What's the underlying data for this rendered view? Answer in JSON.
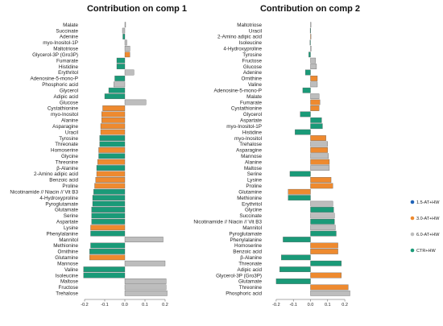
{
  "colors": {
    "1.5-AT+HW": "#1f63b8",
    "3.0-AT+HW": "#ee8a2f",
    "6.0-AT+HW": "#bdbdbd",
    "CTR+HW": "#1a9a78",
    "bar_stroke": "#5a5a5a"
  },
  "legend": [
    {
      "label": "1.5-AT+HW",
      "key": "1.5-AT+HW"
    },
    {
      "label": "3.0-AT+HW",
      "key": "3.0-AT+HW"
    },
    {
      "label": "6.0-AT+HW",
      "key": "6.0-AT+HW"
    },
    {
      "label": "CTR+HW",
      "key": "CTR+HW"
    }
  ],
  "chart_data": [
    {
      "type": "bar",
      "orientation": "horizontal",
      "title": "Contribution on comp 1",
      "xlim": [
        -0.22,
        0.22
      ],
      "xticks": [
        -0.2,
        -0.1,
        0.0,
        0.1,
        0.2
      ],
      "xtick_labels": [
        "-0.2",
        "-0.1",
        "0.0",
        "0.1",
        "0.2"
      ],
      "bars": [
        {
          "label": "Malate",
          "value": 0.004,
          "group": "6.0-AT+HW"
        },
        {
          "label": "Succinate",
          "value": -0.012,
          "group": "6.0-AT+HW"
        },
        {
          "label": "Adenine",
          "value": -0.01,
          "group": "CTR+HW"
        },
        {
          "label": "myo-Inositol-1P",
          "value": 0.01,
          "group": "6.0-AT+HW"
        },
        {
          "label": "Maltotriose",
          "value": 0.025,
          "group": "6.0-AT+HW"
        },
        {
          "label": "Glycerol-3P (Gro3P)",
          "value": 0.025,
          "group": "3.0-AT+HW"
        },
        {
          "label": "Fumarate",
          "value": -0.04,
          "group": "CTR+HW"
        },
        {
          "label": "Histidine",
          "value": -0.04,
          "group": "CTR+HW"
        },
        {
          "label": "Erythritol",
          "value": 0.045,
          "group": "6.0-AT+HW"
        },
        {
          "label": "Adenosine-5-mono-P",
          "value": -0.05,
          "group": "CTR+HW"
        },
        {
          "label": "Phosphoric acid",
          "value": -0.055,
          "group": "6.0-AT+HW"
        },
        {
          "label": "Glycerol",
          "value": -0.08,
          "group": "CTR+HW"
        },
        {
          "label": "Adipic acid",
          "value": -0.1,
          "group": "CTR+HW"
        },
        {
          "label": "Glucose",
          "value": 0.105,
          "group": "6.0-AT+HW"
        },
        {
          "label": "Cystathionine",
          "value": -0.11,
          "group": "3.0-AT+HW"
        },
        {
          "label": "myo-Inositol",
          "value": -0.115,
          "group": "3.0-AT+HW"
        },
        {
          "label": "Alanine",
          "value": -0.115,
          "group": "3.0-AT+HW"
        },
        {
          "label": "Asparagine",
          "value": -0.12,
          "group": "3.0-AT+HW"
        },
        {
          "label": "Uracil",
          "value": -0.12,
          "group": "3.0-AT+HW"
        },
        {
          "label": "Tyrosine",
          "value": -0.125,
          "group": "CTR+HW"
        },
        {
          "label": "Threonate",
          "value": -0.125,
          "group": "CTR+HW"
        },
        {
          "label": "Homoserine",
          "value": -0.13,
          "group": "3.0-AT+HW"
        },
        {
          "label": "Glycine",
          "value": -0.13,
          "group": "CTR+HW"
        },
        {
          "label": "Threonine",
          "value": -0.135,
          "group": "3.0-AT+HW"
        },
        {
          "label": "β-Alanine",
          "value": -0.14,
          "group": "CTR+HW"
        },
        {
          "label": "2-Amino adipic acid",
          "value": -0.14,
          "group": "3.0-AT+HW"
        },
        {
          "label": "Benzoic acid",
          "value": -0.145,
          "group": "3.0-AT+HW"
        },
        {
          "label": "Proline",
          "value": -0.15,
          "group": "3.0-AT+HW"
        },
        {
          "label": "Nicotinamide // Niacin // Vit B3",
          "value": -0.155,
          "group": "CTR+HW"
        },
        {
          "label": "4-Hydroxyproline",
          "value": -0.16,
          "group": "CTR+HW"
        },
        {
          "label": "Pyroglutamate",
          "value": -0.16,
          "group": "CTR+HW"
        },
        {
          "label": "Glutamate",
          "value": -0.165,
          "group": "CTR+HW"
        },
        {
          "label": "Serine",
          "value": -0.165,
          "group": "CTR+HW"
        },
        {
          "label": "Aspartate",
          "value": -0.165,
          "group": "CTR+HW"
        },
        {
          "label": "Lysine",
          "value": -0.17,
          "group": "3.0-AT+HW"
        },
        {
          "label": "Phenylalanine",
          "value": -0.17,
          "group": "CTR+HW"
        },
        {
          "label": "Mannitol",
          "value": 0.19,
          "group": "6.0-AT+HW"
        },
        {
          "label": "Methionine",
          "value": -0.17,
          "group": "CTR+HW"
        },
        {
          "label": "Ornithine",
          "value": -0.175,
          "group": "CTR+HW"
        },
        {
          "label": "Glutamine",
          "value": -0.175,
          "group": "3.0-AT+HW"
        },
        {
          "label": "Mannose",
          "value": 0.2,
          "group": "6.0-AT+HW"
        },
        {
          "label": "Valine",
          "value": -0.205,
          "group": "CTR+HW"
        },
        {
          "label": "Isoleucine",
          "value": -0.205,
          "group": "CTR+HW"
        },
        {
          "label": "Maltose",
          "value": 0.205,
          "group": "6.0-AT+HW"
        },
        {
          "label": "Fructose",
          "value": 0.205,
          "group": "6.0-AT+HW"
        },
        {
          "label": "Trehalose",
          "value": 0.21,
          "group": "6.0-AT+HW"
        }
      ]
    },
    {
      "type": "bar",
      "orientation": "horizontal",
      "title": "Contribution on comp 2",
      "xlim": [
        -0.27,
        0.27
      ],
      "xticks": [
        -0.2,
        -0.1,
        0.0,
        0.1,
        0.2
      ],
      "xtick_labels": [
        "-0.2",
        "-0.1",
        "0.0",
        "0.1",
        "0.2"
      ],
      "bars": [
        {
          "label": "Maltotriose",
          "value": 0.002,
          "group": "6.0-AT+HW"
        },
        {
          "label": "Uracil",
          "value": -0.002,
          "group": "CTR+HW"
        },
        {
          "label": "2-Amino adipic acid",
          "value": 0.002,
          "group": "3.0-AT+HW"
        },
        {
          "label": "Isoleucine",
          "value": -0.003,
          "group": "CTR+HW"
        },
        {
          "label": "4-Hydroxyproline",
          "value": 0.004,
          "group": "6.0-AT+HW"
        },
        {
          "label": "Tyrosine",
          "value": -0.01,
          "group": "CTR+HW"
        },
        {
          "label": "Fructose",
          "value": 0.03,
          "group": "6.0-AT+HW"
        },
        {
          "label": "Glucose",
          "value": 0.035,
          "group": "6.0-AT+HW"
        },
        {
          "label": "Adenine",
          "value": -0.03,
          "group": "CTR+HW"
        },
        {
          "label": "Ornithine",
          "value": 0.04,
          "group": "3.0-AT+HW"
        },
        {
          "label": "Valine",
          "value": 0.04,
          "group": "6.0-AT+HW"
        },
        {
          "label": "Adenosine-5-mono-P",
          "value": -0.045,
          "group": "CTR+HW"
        },
        {
          "label": "Malate",
          "value": 0.05,
          "group": "6.0-AT+HW"
        },
        {
          "label": "Fumarate",
          "value": 0.055,
          "group": "3.0-AT+HW"
        },
        {
          "label": "Cystathionine",
          "value": 0.05,
          "group": "3.0-AT+HW"
        },
        {
          "label": "Glycerol",
          "value": -0.06,
          "group": "CTR+HW"
        },
        {
          "label": "Aspartate",
          "value": 0.065,
          "group": "CTR+HW"
        },
        {
          "label": "myo-Inositol-1P",
          "value": 0.07,
          "group": "CTR+HW"
        },
        {
          "label": "Histidine",
          "value": -0.09,
          "group": "CTR+HW"
        },
        {
          "label": "myo-Inositol",
          "value": 0.09,
          "group": "3.0-AT+HW"
        },
        {
          "label": "Trehalose",
          "value": 0.1,
          "group": "6.0-AT+HW"
        },
        {
          "label": "Asparagine",
          "value": 0.1,
          "group": "3.0-AT+HW"
        },
        {
          "label": "Mannose",
          "value": 0.105,
          "group": "6.0-AT+HW"
        },
        {
          "label": "Alanine",
          "value": 0.11,
          "group": "3.0-AT+HW"
        },
        {
          "label": "Maltose",
          "value": 0.11,
          "group": "6.0-AT+HW"
        },
        {
          "label": "Serine",
          "value": -0.12,
          "group": "CTR+HW"
        },
        {
          "label": "Lysine",
          "value": 0.12,
          "group": "3.0-AT+HW"
        },
        {
          "label": "Proline",
          "value": 0.13,
          "group": "3.0-AT+HW"
        },
        {
          "label": "Glutamine",
          "value": -0.13,
          "group": "3.0-AT+HW"
        },
        {
          "label": "Methionine",
          "value": -0.13,
          "group": "CTR+HW"
        },
        {
          "label": "Erythritol",
          "value": 0.13,
          "group": "6.0-AT+HW"
        },
        {
          "label": "Glycine",
          "value": 0.135,
          "group": "CTR+HW"
        },
        {
          "label": "Succinate",
          "value": 0.14,
          "group": "6.0-AT+HW"
        },
        {
          "label": "Nicotinamide // Niacin // Vit B3",
          "value": 0.14,
          "group": "CTR+HW"
        },
        {
          "label": "Mannitol",
          "value": 0.145,
          "group": "6.0-AT+HW"
        },
        {
          "label": "Pyroglutamate",
          "value": 0.15,
          "group": "CTR+HW"
        },
        {
          "label": "Phenylalanine",
          "value": -0.16,
          "group": "CTR+HW"
        },
        {
          "label": "Homoserine",
          "value": 0.16,
          "group": "3.0-AT+HW"
        },
        {
          "label": "Benzoic acid",
          "value": 0.16,
          "group": "3.0-AT+HW"
        },
        {
          "label": "β-Alanine",
          "value": -0.17,
          "group": "CTR+HW"
        },
        {
          "label": "Threonate",
          "value": 0.18,
          "group": "CTR+HW"
        },
        {
          "label": "Adipic acid",
          "value": -0.18,
          "group": "CTR+HW"
        },
        {
          "label": "Glycerol-3P (Gro3P)",
          "value": 0.18,
          "group": "3.0-AT+HW"
        },
        {
          "label": "Glutamate",
          "value": -0.2,
          "group": "CTR+HW"
        },
        {
          "label": "Threonine",
          "value": 0.22,
          "group": "3.0-AT+HW"
        },
        {
          "label": "Phosphoric acid",
          "value": 0.23,
          "group": "6.0-AT+HW"
        }
      ]
    }
  ]
}
